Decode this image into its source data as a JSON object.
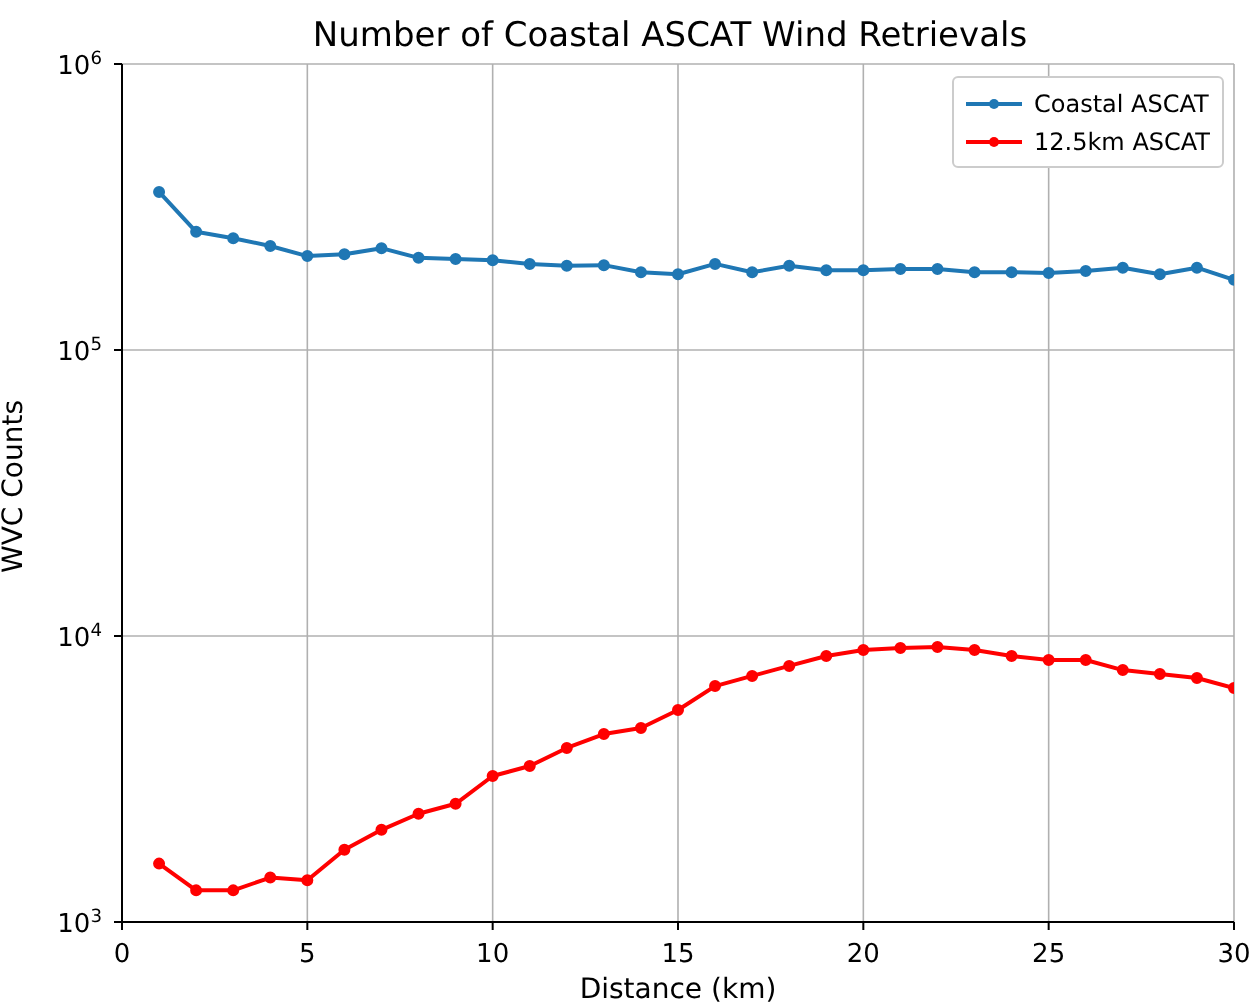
{
  "chart_data": {
    "type": "line",
    "title": "Number of Coastal ASCAT Wind Retrievals",
    "xlabel": "Distance (km)",
    "ylabel": "WVC Counts",
    "x": [
      1,
      2,
      3,
      4,
      5,
      6,
      7,
      8,
      9,
      10,
      11,
      12,
      13,
      14,
      15,
      16,
      17,
      18,
      19,
      20,
      21,
      22,
      23,
      24,
      25,
      26,
      27,
      28,
      29,
      30
    ],
    "series": [
      {
        "name": "Coastal ASCAT",
        "color": "#1f77b4",
        "values": [
          357000,
          259000,
          246000,
          231000,
          213000,
          216000,
          227000,
          210000,
          208000,
          206000,
          200000,
          197000,
          198000,
          187000,
          184000,
          200000,
          187000,
          197000,
          190000,
          190000,
          192000,
          192000,
          187000,
          187000,
          186000,
          189000,
          194000,
          184000,
          194000,
          176000
        ]
      },
      {
        "name": "12.5km ASCAT",
        "color": "#ff0000",
        "values": [
          1600,
          1290,
          1290,
          1430,
          1400,
          1790,
          2100,
          2390,
          2590,
          3240,
          3510,
          4060,
          4540,
          4770,
          5510,
          6680,
          7250,
          7860,
          8510,
          8940,
          9080,
          9150,
          8940,
          8510,
          8240,
          8240,
          7600,
          7360,
          7130,
          6580
        ]
      }
    ],
    "xlim": [
      0,
      30
    ],
    "xticks": [
      0,
      5,
      10,
      15,
      20,
      25,
      30
    ],
    "ylim": [
      1000,
      1000000
    ],
    "yticks": [
      {
        "value": 1000,
        "label": "10$^{3}$"
      },
      {
        "value": 10000,
        "label": "10$^{4}$"
      },
      {
        "value": 100000,
        "label": "10$^{5}$"
      },
      {
        "value": 1000000,
        "label": "10$^{6}$"
      }
    ],
    "log": "y",
    "grid": true,
    "legend": "top right",
    "marker": "circle",
    "line_style": "solid"
  }
}
